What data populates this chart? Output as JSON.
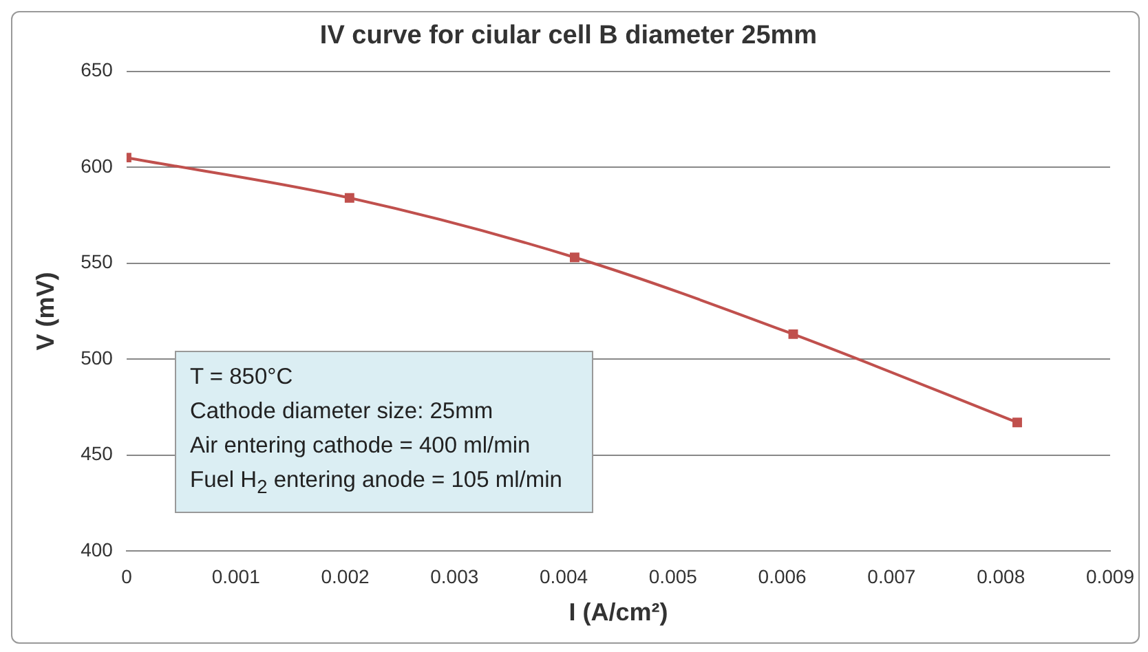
{
  "chart_data": {
    "type": "line",
    "title": "IV curve for ciular cell B diameter 25mm",
    "xlabel": "I (A/cm²)",
    "ylabel": "V (mV)",
    "x": [
      0,
      0.00204,
      0.0041,
      0.0061,
      0.00815
    ],
    "series": [
      {
        "color": "#c0504d",
        "values": [
          605,
          584,
          553,
          513,
          467
        ]
      }
    ],
    "xlim": [
      0,
      0.009
    ],
    "xticks": [
      0,
      0.001,
      0.002,
      0.003,
      0.004,
      0.005,
      0.006,
      0.007,
      0.008,
      0.009
    ],
    "ylim": [
      400,
      650
    ],
    "yticks": [
      400,
      450,
      500,
      550,
      600,
      650
    ],
    "grid": "y",
    "legend": false,
    "marker": "square",
    "line_style": "solid",
    "annotations": [
      "T = 850°C",
      "Cathode diameter size: 25mm",
      "Air entering cathode = 400 ml/min",
      "Fuel H$_{2}$ entering anode = 105 ml/min"
    ]
  }
}
